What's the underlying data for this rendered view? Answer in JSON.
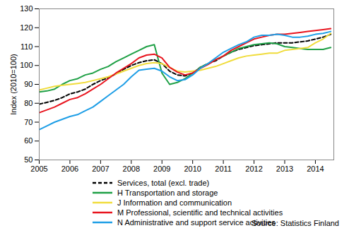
{
  "chart_data": {
    "type": "line",
    "y_label": "Index (2010=100)",
    "caption": "Source: Statistics Finland",
    "x": [
      2005,
      2005.25,
      2005.5,
      2005.75,
      2006,
      2006.25,
      2006.5,
      2006.75,
      2007,
      2007.25,
      2007.5,
      2007.75,
      2008,
      2008.25,
      2008.5,
      2008.75,
      2009,
      2009.25,
      2009.5,
      2009.75,
      2010,
      2010.25,
      2010.5,
      2010.75,
      2011,
      2011.25,
      2011.5,
      2011.75,
      2012,
      2012.25,
      2012.5,
      2012.75,
      2013,
      2013.25,
      2013.5,
      2013.75,
      2014,
      2014.25,
      2014.5
    ],
    "xlim": [
      2005,
      2014.6
    ],
    "xticks": [
      2005,
      2006,
      2007,
      2008,
      2009,
      2010,
      2011,
      2012,
      2013,
      2014
    ],
    "ylim": [
      50,
      130
    ],
    "yticks": [
      50,
      60,
      70,
      80,
      90,
      100,
      110,
      120,
      130
    ],
    "grid": false,
    "legend": "bottom",
    "series": [
      {
        "name": "Services, total (excl. trade)",
        "color": "#000000",
        "line_style": "dashed",
        "values": [
          79.5,
          80.5,
          81.5,
          83,
          85,
          86,
          87.5,
          90,
          92,
          93.5,
          95.5,
          98,
          100,
          101.5,
          102.5,
          103,
          101,
          97,
          95,
          94.5,
          96,
          99,
          101,
          102.5,
          105,
          107,
          108.5,
          109.5,
          110.5,
          111,
          111.5,
          112,
          112,
          112,
          112.5,
          113,
          114,
          115,
          116.5
        ]
      },
      {
        "name": "H Transportation and storage",
        "color": "#1fa046",
        "line_style": "solid",
        "values": [
          86,
          86.5,
          87.5,
          90,
          92,
          93,
          95,
          96,
          98,
          99.5,
          102,
          104,
          106,
          108,
          110,
          111,
          96,
          90,
          91,
          93,
          96,
          99,
          101,
          103,
          105,
          107,
          109,
          110,
          111,
          111.5,
          112,
          111.5,
          110,
          109.5,
          109,
          108.5,
          108.5,
          108.5,
          109.5
        ]
      },
      {
        "name": "J Information and communication",
        "color": "#f0dc3c",
        "line_style": "solid",
        "values": [
          87,
          88,
          89,
          89.5,
          90,
          90.5,
          91,
          92,
          93,
          94,
          95.5,
          97,
          98.5,
          100,
          101,
          101.5,
          101,
          99,
          97,
          96.5,
          97,
          97.5,
          98.5,
          99.5,
          101,
          102.5,
          104,
          105,
          105.5,
          106,
          106.5,
          106.5,
          108,
          108.5,
          109,
          109.5,
          112,
          114,
          117
        ]
      },
      {
        "name": "M Professional, scientific and technical activities",
        "color": "#e8141e",
        "line_style": "solid",
        "values": [
          75,
          76.5,
          78,
          80,
          82,
          83,
          85,
          87.5,
          90,
          93,
          96,
          98.5,
          101,
          104,
          105.5,
          106,
          104,
          99,
          96.5,
          95,
          96,
          98.5,
          100.5,
          103,
          105,
          108,
          110,
          112,
          114,
          115,
          116,
          116.5,
          116.5,
          117,
          117.5,
          118,
          118.5,
          119,
          119.5
        ]
      },
      {
        "name": "N Administrative and support service activities",
        "color": "#1e9ee6",
        "line_style": "solid",
        "values": [
          66,
          68,
          70,
          71.5,
          73,
          74,
          76,
          78,
          81,
          84,
          87,
          90,
          94,
          97.5,
          98,
          98.5,
          97,
          94,
          92,
          92.5,
          95,
          98.5,
          101,
          104,
          107,
          109,
          111,
          112.5,
          115,
          116,
          116,
          116.5,
          116,
          115,
          115,
          115.5,
          116.5,
          117,
          118
        ]
      }
    ]
  }
}
